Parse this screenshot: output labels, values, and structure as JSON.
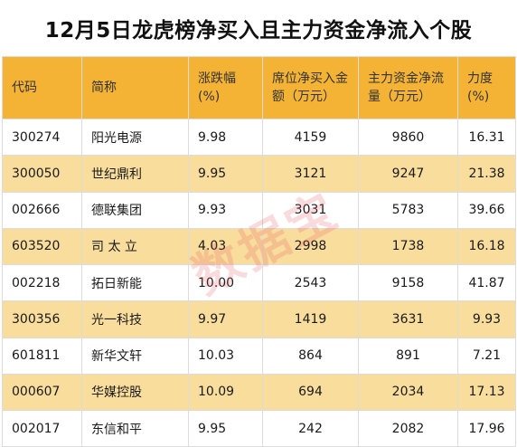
{
  "title": "12月5日龙虎榜净买入且主力资金净流入个股",
  "table": {
    "headers": [
      {
        "line1": "代码",
        "line2": ""
      },
      {
        "line1": "简称",
        "line2": ""
      },
      {
        "line1": "涨跌幅",
        "line2": "(%)"
      },
      {
        "line1": "席位净买入金",
        "line2": "额（万元）"
      },
      {
        "line1": "主力资金净流",
        "line2": "量（万元）"
      },
      {
        "line1": "力度",
        "line2": "(%)"
      }
    ],
    "rows": [
      [
        "300274",
        "阳光电源",
        "9.98",
        "4159",
        "9860",
        "16.31"
      ],
      [
        "300050",
        "世纪鼎利",
        "9.95",
        "3121",
        "9247",
        "21.38"
      ],
      [
        "002666",
        "德联集团",
        "9.93",
        "3031",
        "5783",
        "39.66"
      ],
      [
        "603520",
        "司 太 立",
        "4.03",
        "2998",
        "1738",
        "16.18"
      ],
      [
        "002218",
        "拓日新能",
        "10.00",
        "2543",
        "9158",
        "41.87"
      ],
      [
        "300356",
        "光一科技",
        "9.97",
        "1419",
        "3631",
        "9.93"
      ],
      [
        "601811",
        "新华文轩",
        "10.03",
        "864",
        "891",
        "7.21"
      ],
      [
        "000607",
        "华媒控股",
        "10.09",
        "694",
        "2034",
        "17.13"
      ],
      [
        "002017",
        "东信和平",
        "9.95",
        "242",
        "2082",
        "17.96"
      ]
    ]
  },
  "watermark": "数据宝",
  "colors": {
    "header_bg": "#f5b335",
    "alt_row_bg": "#f9dd9c",
    "watermark": "#e85a64"
  }
}
